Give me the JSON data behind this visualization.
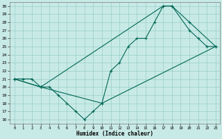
{
  "xlabel": "Humidex (Indice chaleur)",
  "background_color": "#c8eae6",
  "grid_color": "#98ccc8",
  "line_color": "#006655",
  "xlim": [
    -0.5,
    23.5
  ],
  "ylim": [
    15.5,
    30.5
  ],
  "xticks": [
    0,
    1,
    2,
    3,
    4,
    5,
    6,
    7,
    8,
    9,
    10,
    11,
    12,
    13,
    14,
    15,
    16,
    17,
    18,
    19,
    20,
    21,
    22,
    23
  ],
  "yticks": [
    16,
    17,
    18,
    19,
    20,
    21,
    22,
    23,
    24,
    25,
    26,
    27,
    28,
    29,
    30
  ],
  "line1_x": [
    0,
    1,
    2,
    3,
    4,
    5,
    6,
    7,
    8,
    9,
    10,
    11,
    12,
    13,
    14,
    15,
    16,
    17,
    18,
    20,
    21,
    22,
    23
  ],
  "line1_y": [
    21,
    21,
    21,
    20,
    20,
    19,
    18,
    17,
    16,
    17,
    18,
    22,
    23,
    25,
    26,
    26,
    28,
    30,
    30,
    27,
    26,
    25,
    25
  ],
  "line2_x": [
    0,
    3,
    17,
    18,
    20,
    23
  ],
  "line2_y": [
    21,
    20,
    30,
    30,
    28,
    25
  ],
  "line3_x": [
    0,
    3,
    10,
    23
  ],
  "line3_y": [
    21,
    20,
    18,
    25
  ]
}
